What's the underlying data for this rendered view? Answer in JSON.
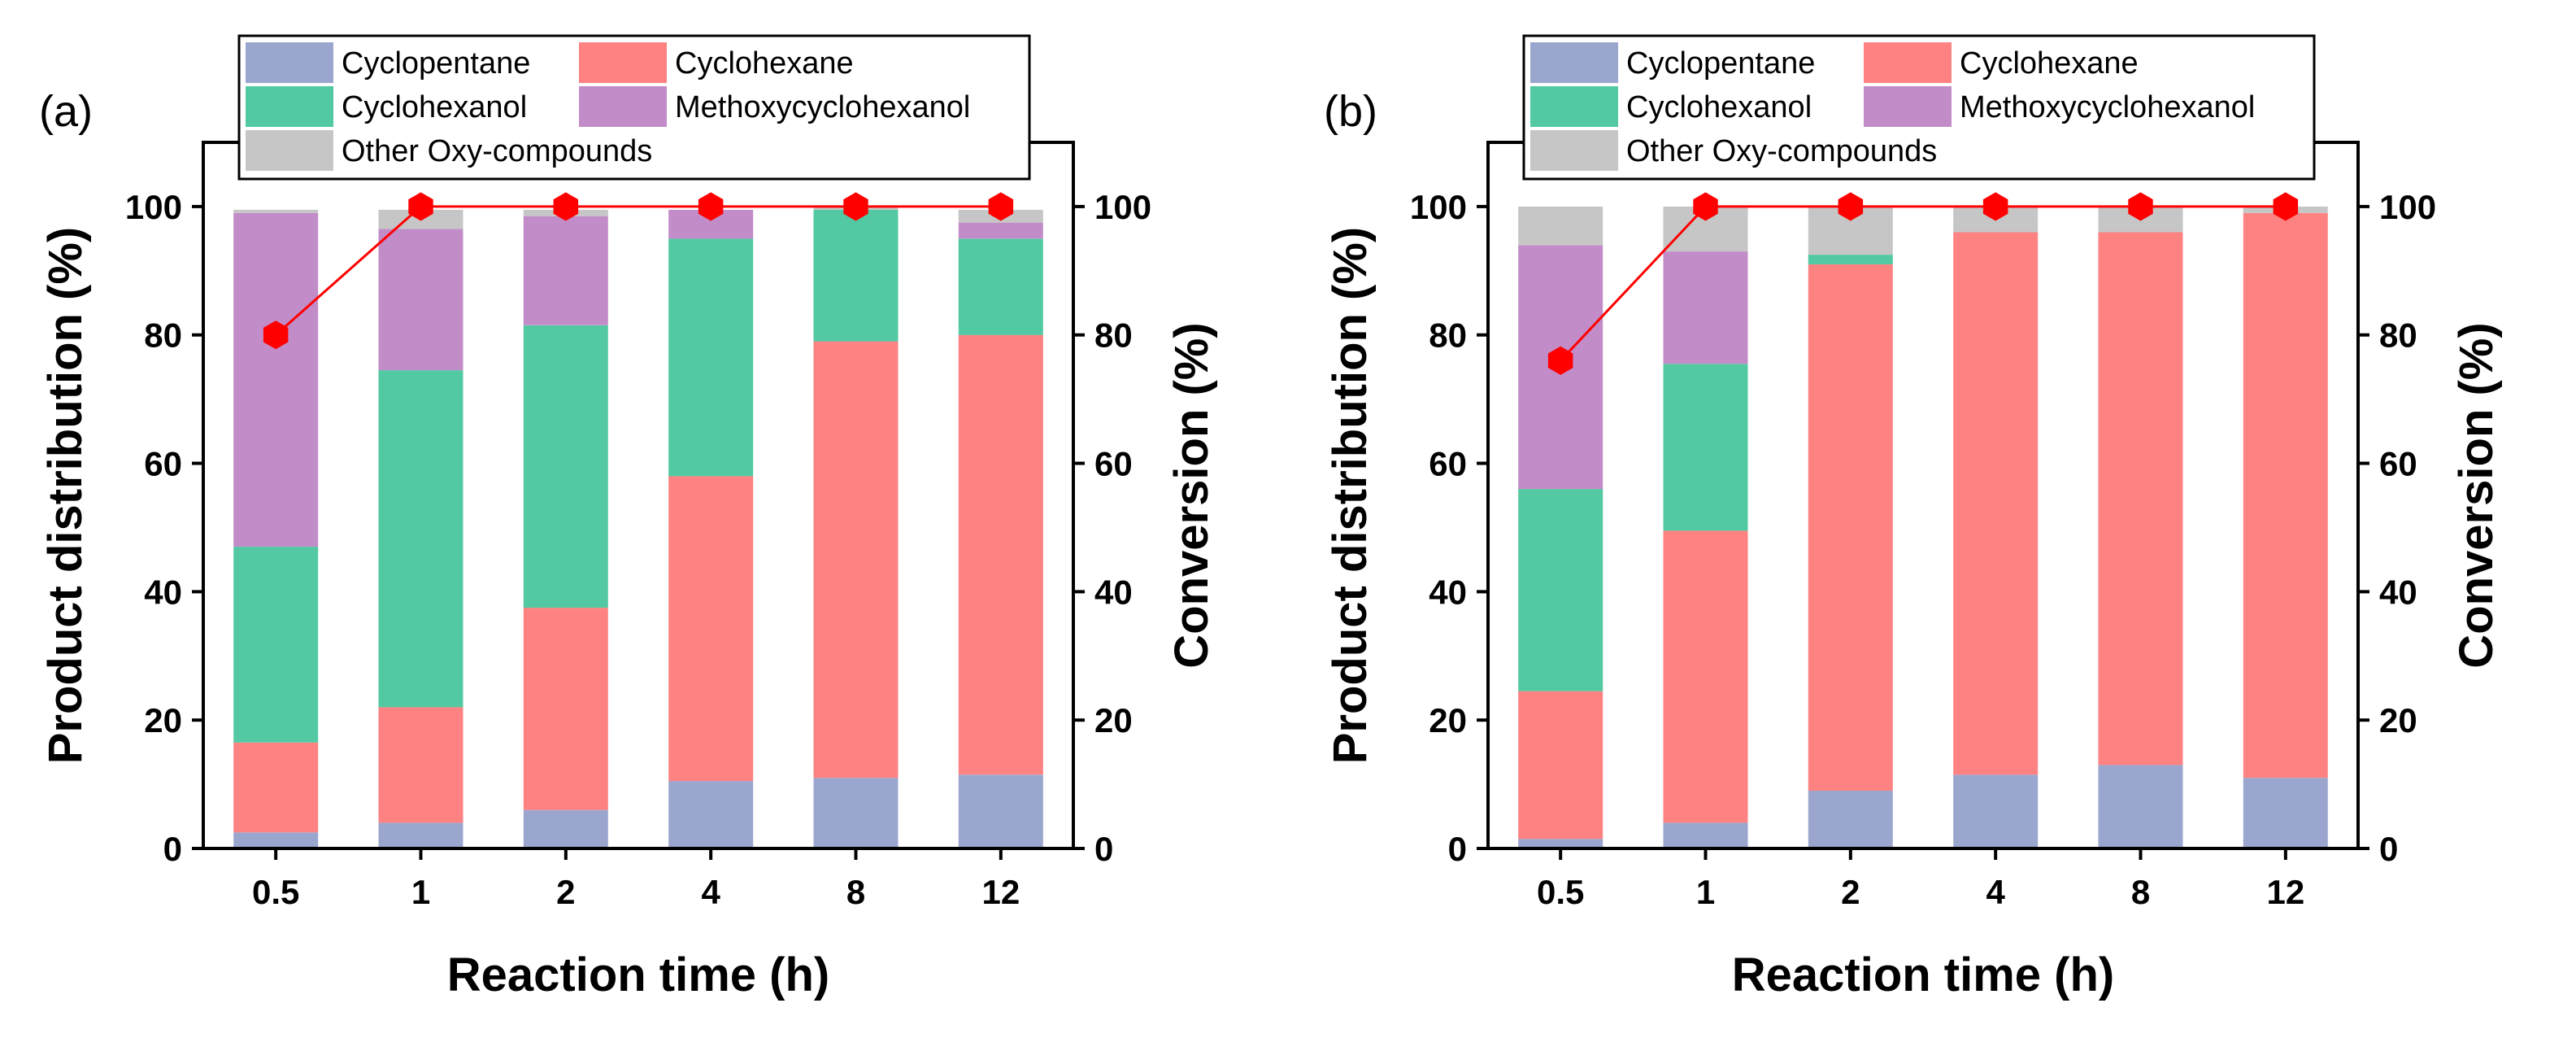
{
  "chart_data": [
    {
      "type": "bar",
      "stacked": true,
      "panel_label": "(a)",
      "categories": [
        "0.5",
        "1",
        "2",
        "4",
        "8",
        "12"
      ],
      "xlabel": "Reaction time (h)",
      "ylabel": "Product distribution (%)",
      "y2label": "Conversion (%)",
      "ylim": [
        0,
        110
      ],
      "y2lim": [
        0,
        110
      ],
      "yticks": [
        "0",
        "20",
        "40",
        "60",
        "80",
        "100"
      ],
      "series": [
        {
          "name": "Cyclopentane",
          "color": "#9ba6cf",
          "values": [
            2.5,
            4,
            6,
            10.5,
            11,
            11.5
          ]
        },
        {
          "name": "Cyclohexane",
          "color": "#fe8282",
          "values": [
            14,
            18,
            31.5,
            47.5,
            68,
            68.5
          ]
        },
        {
          "name": "Cyclohexanol",
          "color": "#52c9a2",
          "values": [
            30.5,
            52.5,
            44,
            37,
            20.5,
            15
          ]
        },
        {
          "name": "Methoxycyclohexanol",
          "color": "#c28cc8",
          "values": [
            52,
            22,
            17,
            4.5,
            0,
            2.5
          ]
        },
        {
          "name": "Other Oxy-compounds",
          "color": "#c6c6c6",
          "values": [
            0.5,
            3,
            1,
            0,
            0.5,
            2
          ]
        }
      ],
      "conversion": {
        "name": "Conversion",
        "color": "#ff0000",
        "values": [
          80,
          100,
          100,
          100,
          100,
          100
        ]
      },
      "legend": {
        "position": "top",
        "entries": [
          "Cyclopentane",
          "Cyclohexane",
          "Cyclohexanol",
          "Methoxycyclohexanol",
          "Other Oxy-compounds"
        ]
      }
    },
    {
      "type": "bar",
      "stacked": true,
      "panel_label": "(b)",
      "categories": [
        "0.5",
        "1",
        "2",
        "4",
        "8",
        "12"
      ],
      "xlabel": "Reaction time (h)",
      "ylabel": "Product distribution (%)",
      "y2label": "Conversion (%)",
      "ylim": [
        0,
        110
      ],
      "y2lim": [
        0,
        110
      ],
      "yticks": [
        "0",
        "20",
        "40",
        "60",
        "80",
        "100"
      ],
      "series": [
        {
          "name": "Cyclopentane",
          "color": "#9ba6cf",
          "values": [
            1.5,
            4,
            9,
            11.5,
            13,
            11
          ]
        },
        {
          "name": "Cyclohexane",
          "color": "#fe8282",
          "values": [
            23,
            45.5,
            82,
            84.5,
            83,
            88
          ]
        },
        {
          "name": "Cyclohexanol",
          "color": "#52c9a2",
          "values": [
            31.5,
            26,
            1.5,
            0,
            0,
            0
          ]
        },
        {
          "name": "Methoxycyclohexanol",
          "color": "#c28cc8",
          "values": [
            38,
            17.5,
            0,
            0,
            0,
            0
          ]
        },
        {
          "name": "Other Oxy-compounds",
          "color": "#c6c6c6",
          "values": [
            6,
            7,
            7.5,
            4,
            4,
            1
          ]
        }
      ],
      "conversion": {
        "name": "Conversion",
        "color": "#ff0000",
        "values": [
          76,
          100,
          100,
          100,
          100,
          100
        ]
      },
      "legend": {
        "position": "top",
        "entries": [
          "Cyclopentane",
          "Cyclohexane",
          "Cyclohexanol",
          "Methoxycyclohexanol",
          "Other Oxy-compounds"
        ]
      }
    }
  ]
}
